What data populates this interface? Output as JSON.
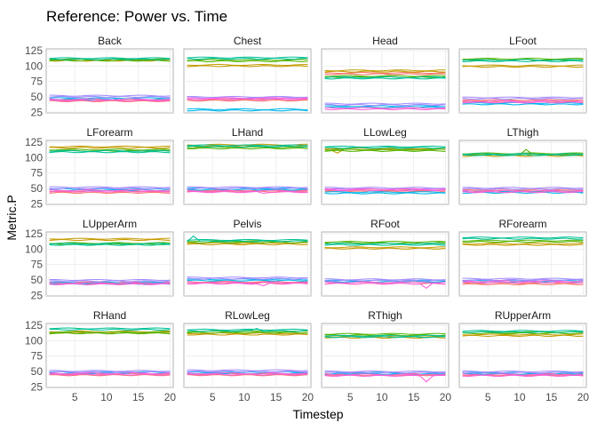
{
  "chart_data": {
    "type": "line",
    "title": "Reference: Power vs. Time",
    "xlabel": "Timestep",
    "ylabel": "Metric.P",
    "xlim": [
      0.5,
      20.5
    ],
    "ylim": [
      24,
      128
    ],
    "x_ticks": [
      5,
      10,
      15,
      20
    ],
    "y_ticks": [
      25,
      50,
      75,
      100,
      125
    ],
    "grid": true,
    "legend": "none",
    "facet_layout": {
      "ncol": 4,
      "nrow": 4
    },
    "series_colors": {
      "A": "#F8766D",
      "B": "#C49A00",
      "C": "#53B400",
      "D": "#00C094",
      "E": "#00B6EB",
      "F": "#A58AFF",
      "G": "#FB61D7"
    },
    "series_base": {
      "A": 43,
      "B": 106,
      "C": 110,
      "D": 110,
      "E": 46,
      "F": 48,
      "G": 45
    },
    "panels": [
      {
        "name": "Back",
        "levels": {
          "A": 43,
          "B": 109,
          "C": 109,
          "D": 111,
          "E": 46,
          "F": 50,
          "G": 44
        },
        "bumps": [
          {
            "s": "E",
            "x": 12,
            "d": 3
          }
        ]
      },
      {
        "name": "Chest",
        "levels": {
          "A": 44,
          "B": 100,
          "C": 108,
          "D": 112,
          "E": 28,
          "F": 48,
          "G": 46
        },
        "bumps": []
      },
      {
        "name": "Head",
        "levels": {
          "A": 87,
          "B": 91,
          "C": 82,
          "D": 80,
          "E": 33,
          "F": 37,
          "G": 30
        },
        "bumps": []
      },
      {
        "name": "LFoot",
        "levels": {
          "A": 43,
          "B": 99,
          "C": 110,
          "D": 108,
          "E": 38,
          "F": 47,
          "G": 41
        },
        "bumps": [
          {
            "s": "C",
            "x": 11,
            "d": 2
          }
        ]
      },
      {
        "name": "LForearm",
        "levels": {
          "A": 43,
          "B": 116,
          "C": 111,
          "D": 109,
          "E": 47,
          "F": 50,
          "G": 45
        },
        "bumps": []
      },
      {
        "name": "LHand",
        "levels": {
          "A": 45,
          "B": 119,
          "C": 115,
          "D": 118,
          "E": 48,
          "F": 50,
          "G": 44
        },
        "bumps": [
          {
            "s": "G",
            "x": 13,
            "d": -2
          }
        ]
      },
      {
        "name": "LLowLeg",
        "levels": {
          "A": 45,
          "B": 113,
          "C": 111,
          "D": 116,
          "E": 42,
          "F": 49,
          "G": 47
        },
        "bumps": [
          {
            "s": "B",
            "x": 3,
            "d": -5
          }
        ]
      },
      {
        "name": "LThigh",
        "levels": {
          "A": 46,
          "B": 103,
          "C": 105,
          "D": 104,
          "E": 43,
          "F": 49,
          "G": 44
        },
        "bumps": [
          {
            "s": "C",
            "x": 11,
            "d": 8
          }
        ]
      },
      {
        "name": "LUpperArm",
        "levels": {
          "A": 44,
          "B": 115,
          "C": 108,
          "D": 107,
          "E": 44,
          "F": 48,
          "G": 43
        },
        "bumps": []
      },
      {
        "name": "Pelvis",
        "levels": {
          "A": 45,
          "B": 108,
          "C": 111,
          "D": 113,
          "E": 49,
          "F": 52,
          "G": 44
        },
        "bumps": [
          {
            "s": "D",
            "x": 2,
            "d": 9
          },
          {
            "s": "G",
            "x": 13,
            "d": -4
          }
        ]
      },
      {
        "name": "RFoot",
        "levels": {
          "A": 44,
          "B": 101,
          "C": 110,
          "D": 107,
          "E": 47,
          "F": 49,
          "G": 44
        },
        "bumps": [
          {
            "s": "G",
            "x": 17,
            "d": -8
          }
        ]
      },
      {
        "name": "RForearm",
        "levels": {
          "A": 43,
          "B": 107,
          "C": 112,
          "D": 117,
          "E": 47,
          "F": 50,
          "G": 46
        },
        "bumps": []
      },
      {
        "name": "RHand",
        "levels": {
          "A": 44,
          "B": 113,
          "C": 112,
          "D": 118,
          "E": 47,
          "F": 49,
          "G": 45
        },
        "bumps": []
      },
      {
        "name": "RLowLeg",
        "levels": {
          "A": 44,
          "B": 110,
          "C": 113,
          "D": 116,
          "E": 47,
          "F": 50,
          "G": 45
        },
        "bumps": [
          {
            "s": "D",
            "x": 12,
            "d": 4
          }
        ]
      },
      {
        "name": "RThigh",
        "levels": {
          "A": 44,
          "B": 105,
          "C": 109,
          "D": 106,
          "E": 46,
          "F": 48,
          "G": 43
        },
        "bumps": [
          {
            "s": "G",
            "x": 17,
            "d": -9
          }
        ]
      },
      {
        "name": "RUpperArm",
        "levels": {
          "A": 44,
          "B": 108,
          "C": 112,
          "D": 114,
          "E": 46,
          "F": 48,
          "G": 43
        },
        "bumps": []
      }
    ]
  }
}
